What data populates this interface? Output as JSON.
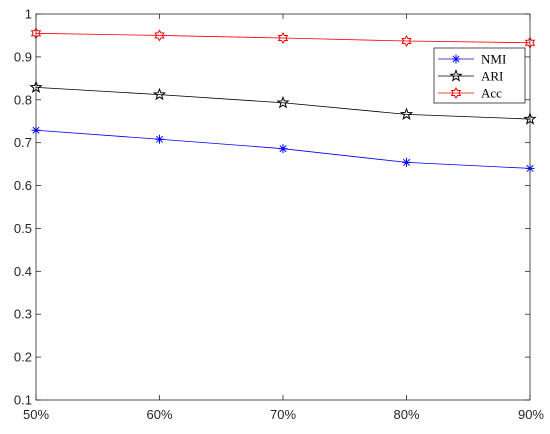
{
  "chart_data": {
    "type": "line",
    "categories": [
      "50%",
      "60%",
      "70%",
      "80%",
      "90%"
    ],
    "x": [
      0.5,
      0.6,
      0.7,
      0.8,
      0.9
    ],
    "ylim": [
      0.1,
      1
    ],
    "yticks": [
      0.1,
      0.2,
      0.3,
      0.4,
      0.5,
      0.6,
      0.7,
      0.8,
      0.9,
      1
    ],
    "ytick_labels": [
      "0.1",
      "0.2",
      "0.3",
      "0.4",
      "0.5",
      "0.6",
      "0.7",
      "0.8",
      "0.9",
      "1"
    ],
    "grid": false,
    "legend_position": "top-right",
    "series": [
      {
        "name": "NMI",
        "values": [
          0.729,
          0.708,
          0.686,
          0.654,
          0.64
        ],
        "color": "#0000ff",
        "marker": "asterisk-icon"
      },
      {
        "name": "ARI",
        "values": [
          0.829,
          0.812,
          0.793,
          0.766,
          0.755
        ],
        "color": "#000000",
        "marker": "star-icon"
      },
      {
        "name": "Acc",
        "values": [
          0.955,
          0.95,
          0.944,
          0.937,
          0.933
        ],
        "color": "#ff0000",
        "marker": "hexagram-icon"
      }
    ]
  }
}
